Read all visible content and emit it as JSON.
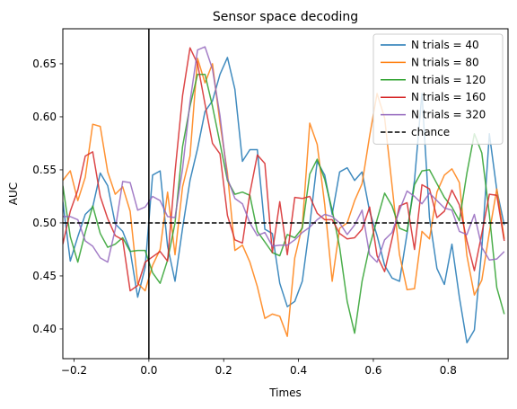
{
  "chart_data": {
    "type": "line",
    "title": "Sensor space decoding",
    "xlabel": "Times",
    "ylabel": "AUC",
    "xlim": [
      -0.23,
      0.96
    ],
    "ylim": [
      0.372,
      0.683
    ],
    "x_ticks": [
      -0.2,
      0.0,
      0.2,
      0.4,
      0.6,
      0.8
    ],
    "x_tick_labels": [
      "−0.2",
      "0.0",
      "0.2",
      "0.4",
      "0.6",
      "0.8"
    ],
    "y_ticks": [
      0.4,
      0.45,
      0.5,
      0.55,
      0.6,
      0.65
    ],
    "y_tick_labels": [
      "0.40",
      "0.45",
      "0.50",
      "0.55",
      "0.60",
      "0.65"
    ],
    "grid": false,
    "legend_position": "top-right",
    "vline_x": 0.0,
    "chance_level": 0.5,
    "chance_label": "chance",
    "chance_color": "#000000",
    "x": [
      -0.23,
      -0.21,
      -0.19,
      -0.17,
      -0.15,
      -0.13,
      -0.11,
      -0.09,
      -0.07,
      -0.05,
      -0.03,
      -0.01,
      0.01,
      0.03,
      0.05,
      0.07,
      0.09,
      0.11,
      0.13,
      0.15,
      0.17,
      0.19,
      0.21,
      0.23,
      0.25,
      0.27,
      0.29,
      0.31,
      0.33,
      0.35,
      0.37,
      0.39,
      0.41,
      0.43,
      0.45,
      0.47,
      0.49,
      0.51,
      0.53,
      0.55,
      0.57,
      0.59,
      0.61,
      0.63,
      0.65,
      0.67,
      0.69,
      0.71,
      0.73,
      0.75,
      0.77,
      0.79,
      0.81,
      0.83,
      0.85,
      0.87,
      0.89,
      0.91,
      0.93,
      0.95
    ],
    "series": [
      {
        "name": "N trials = 40",
        "color": "#1f77b4",
        "values": [
          0.52,
          0.464,
          0.487,
          0.508,
          0.515,
          0.547,
          0.535,
          0.499,
          0.492,
          0.474,
          0.43,
          0.458,
          0.545,
          0.549,
          0.478,
          0.445,
          0.495,
          0.54,
          0.57,
          0.605,
          0.615,
          0.64,
          0.656,
          0.626,
          0.558,
          0.569,
          0.569,
          0.494,
          0.49,
          0.443,
          0.421,
          0.426,
          0.445,
          0.498,
          0.558,
          0.545,
          0.508,
          0.548,
          0.552,
          0.54,
          0.548,
          0.511,
          0.488,
          0.46,
          0.448,
          0.445,
          0.49,
          0.54,
          0.622,
          0.505,
          0.457,
          0.442,
          0.48,
          0.43,
          0.387,
          0.399,
          0.476,
          0.584,
          0.531,
          0.498
        ]
      },
      {
        "name": "N trials = 80",
        "color": "#ff7f0e",
        "values": [
          0.54,
          0.549,
          0.521,
          0.543,
          0.593,
          0.591,
          0.548,
          0.527,
          0.534,
          0.511,
          0.443,
          0.436,
          0.46,
          0.475,
          0.529,
          0.47,
          0.534,
          0.563,
          0.655,
          0.632,
          0.65,
          0.594,
          0.547,
          0.474,
          0.479,
          0.463,
          0.44,
          0.41,
          0.414,
          0.412,
          0.393,
          0.467,
          0.497,
          0.594,
          0.574,
          0.517,
          0.445,
          0.495,
          0.5,
          0.521,
          0.537,
          0.582,
          0.622,
          0.599,
          0.535,
          0.47,
          0.437,
          0.438,
          0.492,
          0.485,
          0.529,
          0.545,
          0.551,
          0.538,
          0.469,
          0.432,
          0.446,
          0.491,
          0.532,
          0.485
        ]
      },
      {
        "name": "N trials = 120",
        "color": "#2ca02c",
        "values": [
          0.535,
          0.487,
          0.463,
          0.491,
          0.516,
          0.49,
          0.477,
          0.48,
          0.486,
          0.473,
          0.474,
          0.474,
          0.453,
          0.443,
          0.465,
          0.5,
          0.572,
          0.61,
          0.64,
          0.64,
          0.61,
          0.575,
          0.54,
          0.527,
          0.529,
          0.526,
          0.492,
          0.482,
          0.472,
          0.469,
          0.489,
          0.486,
          0.495,
          0.546,
          0.56,
          0.541,
          0.512,
          0.477,
          0.426,
          0.396,
          0.445,
          0.478,
          0.503,
          0.528,
          0.516,
          0.495,
          0.492,
          0.536,
          0.549,
          0.55,
          0.537,
          0.524,
          0.515,
          0.502,
          0.547,
          0.584,
          0.566,
          0.508,
          0.439,
          0.414
        ]
      },
      {
        "name": "N trials = 160",
        "color": "#d62728",
        "values": [
          0.48,
          0.511,
          0.531,
          0.563,
          0.567,
          0.525,
          0.504,
          0.488,
          0.484,
          0.436,
          0.441,
          0.463,
          0.468,
          0.473,
          0.464,
          0.548,
          0.62,
          0.665,
          0.65,
          0.612,
          0.575,
          0.565,
          0.507,
          0.484,
          0.481,
          0.528,
          0.564,
          0.556,
          0.472,
          0.52,
          0.47,
          0.524,
          0.523,
          0.525,
          0.509,
          0.503,
          0.503,
          0.49,
          0.485,
          0.486,
          0.494,
          0.515,
          0.469,
          0.454,
          0.485,
          0.516,
          0.519,
          0.475,
          0.536,
          0.532,
          0.505,
          0.511,
          0.531,
          0.517,
          0.483,
          0.455,
          0.49,
          0.527,
          0.526,
          0.483
        ]
      },
      {
        "name": "N trials = 320",
        "color": "#9467bd",
        "values": [
          0.506,
          0.506,
          0.503,
          0.483,
          0.478,
          0.467,
          0.463,
          0.494,
          0.539,
          0.538,
          0.512,
          0.515,
          0.525,
          0.521,
          0.506,
          0.505,
          0.551,
          0.614,
          0.663,
          0.666,
          0.645,
          0.601,
          0.542,
          0.523,
          0.518,
          0.5,
          0.488,
          0.491,
          0.478,
          0.479,
          0.479,
          0.484,
          0.491,
          0.496,
          0.503,
          0.508,
          0.506,
          0.5,
          0.489,
          0.498,
          0.512,
          0.47,
          0.463,
          0.484,
          0.491,
          0.512,
          0.53,
          0.525,
          0.518,
          0.528,
          0.521,
          0.514,
          0.512,
          0.492,
          0.489,
          0.508,
          0.477,
          0.465,
          0.466,
          0.473
        ]
      }
    ]
  }
}
